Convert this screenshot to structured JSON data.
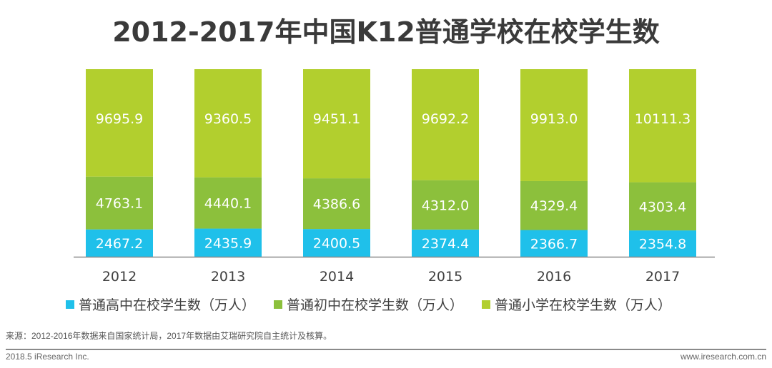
{
  "chart_data": {
    "type": "bar",
    "stacked": "percent",
    "title": "2012-2017年中国K12普通学校在校学生数",
    "categories": [
      "2012",
      "2013",
      "2014",
      "2015",
      "2016",
      "2017"
    ],
    "series": [
      {
        "name": "普通高中在校学生数（万人）",
        "color": "#1fc0ea",
        "values": [
          2467.2,
          2435.9,
          2400.5,
          2374.4,
          2366.7,
          2354.8
        ]
      },
      {
        "name": "普通初中在校学生数（万人）",
        "color": "#8cc03c",
        "values": [
          4763.1,
          4440.1,
          4386.6,
          4312.0,
          4329.4,
          4303.4
        ]
      },
      {
        "name": "普通小学在校学生数（万人）",
        "color": "#b2cf2e",
        "values": [
          9695.9,
          9360.5,
          9451.1,
          9692.2,
          9913.0,
          10111.3
        ]
      }
    ],
    "value_labels": [
      [
        "2467.2",
        "2435.9",
        "2400.5",
        "2374.4",
        "2366.7",
        "2354.8"
      ],
      [
        "4763.1",
        "4440.1",
        "4386.6",
        "4312.0",
        "4329.4",
        "4303.4"
      ],
      [
        "9695.9",
        "9360.5",
        "9451.1",
        "9692.2",
        "9913.0",
        "10111.3"
      ]
    ],
    "legend_position": "bottom",
    "grid": false
  },
  "source": "来源：2012-2016年数据来自国家统计局，2017年数据由艾瑞研究院自主统计及核算。",
  "footer": {
    "left": "2018.5 iResearch Inc.",
    "right": "www.iresearch.com.cn"
  }
}
